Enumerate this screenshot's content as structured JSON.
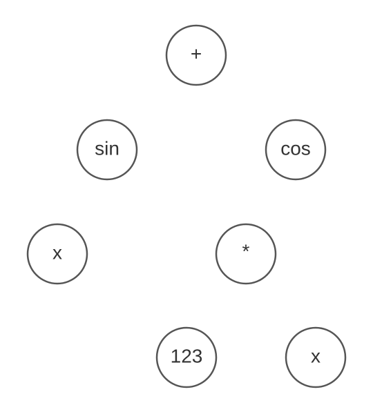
{
  "diagram": {
    "nodes": [
      {
        "id": "root",
        "label": "+"
      },
      {
        "id": "sin",
        "label": "sin"
      },
      {
        "id": "cos",
        "label": "cos"
      },
      {
        "id": "x1",
        "label": "x"
      },
      {
        "id": "mul",
        "label": "*"
      },
      {
        "id": "num",
        "label": "123"
      },
      {
        "id": "x2",
        "label": "x"
      }
    ],
    "stroke_color": "#555555",
    "text_color": "#333333"
  }
}
